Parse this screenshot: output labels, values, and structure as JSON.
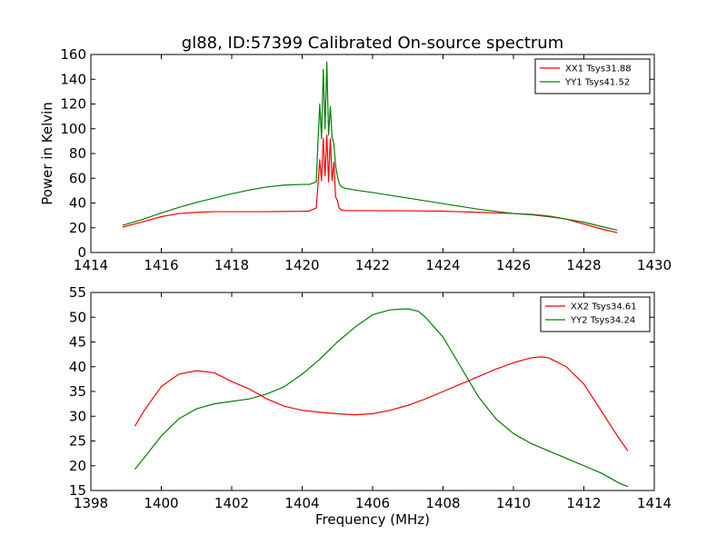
{
  "figure": {
    "title": "gl88, ID:57399 Calibrated On-source spectrum",
    "ylabel": "Power in Kelvin",
    "xlabel": "Frequency (MHz)"
  },
  "chart_data": [
    {
      "type": "line",
      "panel": "top",
      "title": "gl88, ID:57399 Calibrated On-source spectrum",
      "xlabel": "",
      "ylabel": "Power in Kelvin",
      "xlim": [
        1414,
        1430
      ],
      "ylim": [
        0,
        160
      ],
      "xticks": [
        1414,
        1416,
        1418,
        1420,
        1422,
        1424,
        1426,
        1428,
        1430
      ],
      "yticks": [
        0,
        20,
        40,
        60,
        80,
        100,
        120,
        140,
        160
      ],
      "grid": false,
      "legend_position": "top-right",
      "series": [
        {
          "name": "XX1 Tsys31.88",
          "color": "#ff0000",
          "x": [
            1414.9,
            1415.5,
            1416.0,
            1416.5,
            1417.0,
            1417.5,
            1418.0,
            1418.5,
            1419.0,
            1419.5,
            1420.0,
            1420.2,
            1420.4,
            1420.45,
            1420.5,
            1420.55,
            1420.6,
            1420.65,
            1420.7,
            1420.75,
            1420.8,
            1420.85,
            1420.9,
            1420.95,
            1421.0,
            1421.05,
            1421.1,
            1421.2,
            1421.3,
            1421.5,
            1422.0,
            1423.0,
            1424.0,
            1425.0,
            1426.0,
            1426.5,
            1427.0,
            1427.5,
            1428.0,
            1428.5,
            1428.95
          ],
          "y": [
            20.5,
            25,
            29,
            31.5,
            32.5,
            33,
            33,
            33,
            33,
            33.2,
            33.3,
            33.5,
            36,
            55,
            75,
            58,
            92,
            62,
            95,
            57,
            92,
            58,
            73,
            45,
            42,
            36,
            34.5,
            34,
            33.8,
            33.8,
            33.8,
            33.7,
            33.4,
            32.5,
            31.5,
            30.8,
            29.5,
            27,
            23,
            19,
            16
          ]
        },
        {
          "name": "YY1 Tsys41.52",
          "color": "#008000",
          "x": [
            1414.9,
            1415.5,
            1416.0,
            1416.5,
            1417.0,
            1417.5,
            1418.0,
            1418.5,
            1419.0,
            1419.5,
            1420.0,
            1420.2,
            1420.4,
            1420.45,
            1420.5,
            1420.55,
            1420.6,
            1420.65,
            1420.7,
            1420.75,
            1420.8,
            1420.85,
            1420.9,
            1420.95,
            1421.0,
            1421.05,
            1421.1,
            1421.2,
            1421.5,
            1422.0,
            1423.0,
            1424.0,
            1425.0,
            1426.0,
            1426.5,
            1427.0,
            1427.5,
            1428.0,
            1428.5,
            1428.95
          ],
          "y": [
            22,
            27,
            32,
            36.5,
            40.5,
            44,
            47.5,
            50.5,
            53,
            54.5,
            55,
            55,
            57,
            90,
            120,
            92,
            148,
            100,
            154,
            95,
            118,
            93,
            88,
            70,
            62,
            56,
            53.5,
            52,
            50.5,
            48.5,
            44,
            39.5,
            35,
            31.5,
            30.5,
            29,
            27,
            24.5,
            21,
            18
          ]
        }
      ]
    },
    {
      "type": "line",
      "panel": "bottom",
      "title": "",
      "xlabel": "Frequency (MHz)",
      "ylabel": "",
      "xlim": [
        1398,
        1414
      ],
      "ylim": [
        15,
        55
      ],
      "xticks": [
        1398,
        1400,
        1402,
        1404,
        1406,
        1408,
        1410,
        1412,
        1414
      ],
      "yticks": [
        15,
        20,
        25,
        30,
        35,
        40,
        45,
        50,
        55
      ],
      "grid": false,
      "legend_position": "top-right",
      "series": [
        {
          "name": "XX2 Tsys34.61",
          "color": "#ff0000",
          "x": [
            1399.25,
            1399.5,
            1400.0,
            1400.5,
            1401.0,
            1401.5,
            1402.0,
            1402.5,
            1403.0,
            1403.5,
            1404.0,
            1404.5,
            1405.0,
            1405.5,
            1406.0,
            1406.5,
            1407.0,
            1407.5,
            1408.0,
            1408.5,
            1409.0,
            1409.5,
            1410.0,
            1410.5,
            1410.8,
            1411.0,
            1411.5,
            1412.0,
            1412.5,
            1413.0,
            1413.25
          ],
          "y": [
            28,
            31,
            36,
            38.5,
            39.2,
            38.8,
            37,
            35.5,
            33.5,
            32,
            31.2,
            30.8,
            30.5,
            30.3,
            30.5,
            31.2,
            32.2,
            33.5,
            35,
            36.5,
            38,
            39.5,
            40.8,
            41.8,
            42,
            41.8,
            40,
            36.5,
            31,
            25.5,
            23
          ]
        },
        {
          "name": "YY2 Tsys34.24",
          "color": "#008000",
          "x": [
            1399.25,
            1399.5,
            1400.0,
            1400.5,
            1401.0,
            1401.5,
            1402.0,
            1402.5,
            1403.0,
            1403.5,
            1404.0,
            1404.5,
            1405.0,
            1405.5,
            1406.0,
            1406.5,
            1407.0,
            1407.3,
            1407.5,
            1408.0,
            1408.5,
            1409.0,
            1409.5,
            1410.0,
            1410.5,
            1411.0,
            1411.5,
            1412.0,
            1412.5,
            1413.0,
            1413.25
          ],
          "y": [
            19.3,
            21.5,
            26,
            29.5,
            31.5,
            32.5,
            33,
            33.5,
            34.5,
            36,
            38.5,
            41.5,
            45,
            48,
            50.5,
            51.5,
            51.7,
            51.2,
            50,
            46,
            40,
            34,
            29.5,
            26.5,
            24.5,
            23,
            21.5,
            20,
            18.5,
            16.5,
            15.8
          ]
        }
      ]
    }
  ]
}
